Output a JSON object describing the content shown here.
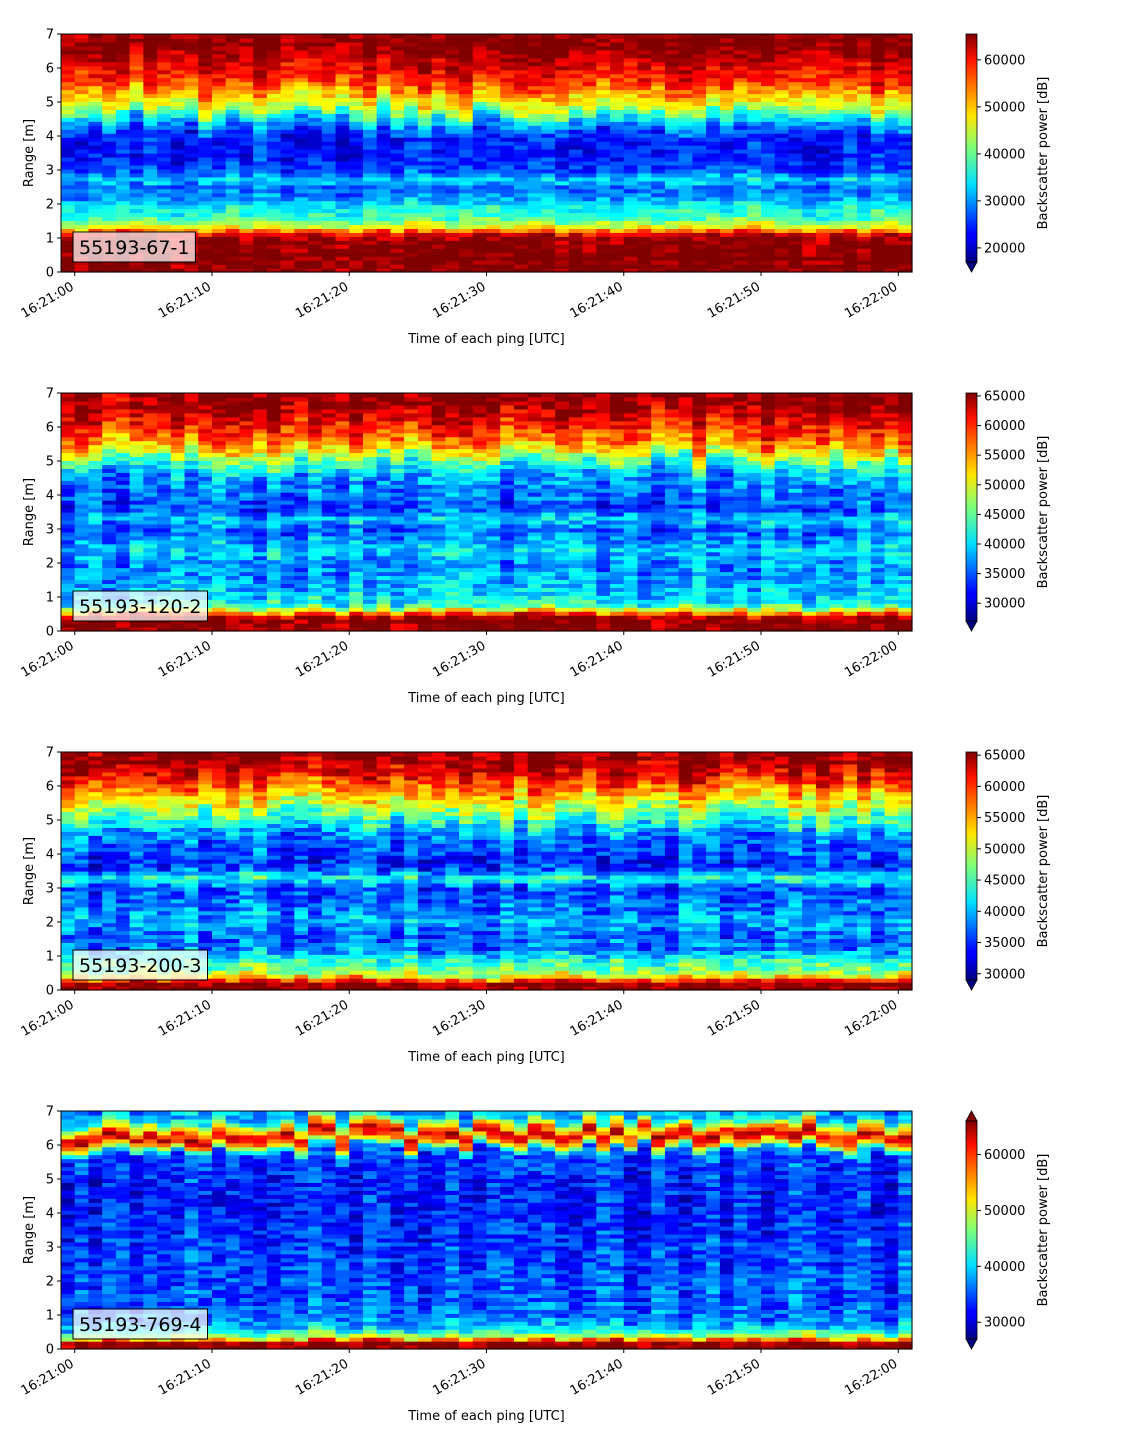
{
  "chart_data": [
    {
      "type": "heatmap",
      "label": "55193-67-1",
      "xlabel": "Time of each ping [UTC]",
      "ylabel": "Range [m]",
      "colorbar_label": "Backscatter power [dB]",
      "colormap": "jet",
      "x_range": [
        "16:21:00",
        "16:22:00"
      ],
      "x_ticks": [
        "16:21:00",
        "16:21:10",
        "16:21:20",
        "16:21:30",
        "16:21:40",
        "16:21:50",
        "16:22:00"
      ],
      "ylim": [
        0,
        7
      ],
      "y_ticks": [
        "0",
        "1",
        "2",
        "3",
        "4",
        "5",
        "6",
        "7"
      ],
      "clim": [
        17000,
        65500
      ],
      "colorbar_ticks": [
        "20000",
        "30000",
        "40000",
        "50000",
        "60000"
      ],
      "colorbar_extend": "min",
      "profile": {
        "range_m": [
          0,
          0.2,
          0.4,
          0.8,
          1.1,
          1.3,
          1.6,
          1.9,
          2.2,
          2.5,
          2.7,
          3.0,
          3.5,
          4.0,
          4.5,
          4.8,
          5.2,
          5.6,
          6.0,
          6.3,
          6.6,
          7.0
        ],
        "value": [
          65500,
          65500,
          65500,
          65500,
          62000,
          48000,
          38000,
          36000,
          30000,
          28000,
          34000,
          26000,
          24000,
          24000,
          34000,
          44000,
          50000,
          58000,
          60000,
          63000,
          65500,
          65500
        ]
      }
    },
    {
      "type": "heatmap",
      "label": "55193-120-2",
      "xlabel": "Time of each ping [UTC]",
      "ylabel": "Range [m]",
      "colorbar_label": "Backscatter power [dB]",
      "colormap": "jet",
      "x_range": [
        "16:21:00",
        "16:22:00"
      ],
      "x_ticks": [
        "16:21:00",
        "16:21:10",
        "16:21:20",
        "16:21:30",
        "16:21:40",
        "16:21:50",
        "16:22:00"
      ],
      "ylim": [
        0,
        7
      ],
      "y_ticks": [
        "0",
        "1",
        "2",
        "3",
        "4",
        "5",
        "6",
        "7"
      ],
      "clim": [
        27000,
        65500
      ],
      "colorbar_ticks": [
        "30000",
        "35000",
        "40000",
        "45000",
        "50000",
        "55000",
        "60000",
        "65000"
      ],
      "colorbar_extend": "min",
      "profile": {
        "range_m": [
          0,
          0.2,
          0.4,
          0.6,
          0.8,
          1.0,
          1.4,
          2.0,
          2.4,
          3.0,
          3.3,
          3.6,
          4.0,
          4.5,
          5.0,
          5.4,
          5.8,
          6.2,
          6.6,
          7.0
        ],
        "value": [
          65500,
          65500,
          65500,
          52000,
          42000,
          40000,
          38000,
          37000,
          40000,
          35000,
          40000,
          34000,
          36000,
          37000,
          44000,
          53000,
          58000,
          61000,
          64000,
          65500
        ]
      }
    },
    {
      "type": "heatmap",
      "label": "55193-200-3",
      "xlabel": "Time of each ping [UTC]",
      "ylabel": "Range [m]",
      "colorbar_label": "Backscatter power [dB]",
      "colormap": "jet",
      "x_range": [
        "16:21:00",
        "16:22:00"
      ],
      "x_ticks": [
        "16:21:00",
        "16:21:10",
        "16:21:20",
        "16:21:30",
        "16:21:40",
        "16:21:50",
        "16:22:00"
      ],
      "ylim": [
        0,
        7
      ],
      "y_ticks": [
        "0",
        "1",
        "2",
        "3",
        "4",
        "5",
        "6",
        "7"
      ],
      "clim": [
        29000,
        65500
      ],
      "colorbar_ticks": [
        "30000",
        "35000",
        "40000",
        "45000",
        "50000",
        "55000",
        "60000",
        "65000"
      ],
      "colorbar_extend": "min",
      "profile": {
        "range_m": [
          0,
          0.2,
          0.4,
          0.6,
          0.9,
          1.2,
          1.6,
          2.0,
          2.4,
          3.0,
          3.3,
          3.6,
          4.0,
          4.5,
          5.0,
          5.4,
          5.8,
          6.2,
          6.6,
          7.0
        ],
        "value": [
          65500,
          65500,
          52000,
          47000,
          44000,
          38000,
          37000,
          40000,
          38000,
          36000,
          44000,
          35000,
          36000,
          38000,
          44000,
          50000,
          55000,
          60000,
          64000,
          65500
        ]
      }
    },
    {
      "type": "heatmap",
      "label": "55193-769-4",
      "xlabel": "Time of each ping [UTC]",
      "ylabel": "Range [m]",
      "colorbar_label": "Backscatter power [dB]",
      "colormap": "jet",
      "x_range": [
        "16:21:00",
        "16:22:00"
      ],
      "x_ticks": [
        "16:21:00",
        "16:21:10",
        "16:21:20",
        "16:21:30",
        "16:21:40",
        "16:21:50",
        "16:22:00"
      ],
      "ylim": [
        0,
        7
      ],
      "y_ticks": [
        "0",
        "1",
        "2",
        "3",
        "4",
        "5",
        "6",
        "7"
      ],
      "clim": [
        27000,
        66000
      ],
      "colorbar_ticks": [
        "30000",
        "40000",
        "50000",
        "60000"
      ],
      "colorbar_extend": "both",
      "profile": {
        "range_m": [
          0,
          0.2,
          0.35,
          0.6,
          1.0,
          1.5,
          2.0,
          3.0,
          4.0,
          5.0,
          5.8,
          6.1,
          6.3,
          6.6,
          6.8,
          7.0
        ],
        "value": [
          66000,
          66000,
          50000,
          40000,
          36000,
          35000,
          35000,
          34000,
          33000,
          33000,
          35000,
          55000,
          64000,
          50000,
          40000,
          38000
        ]
      }
    }
  ]
}
